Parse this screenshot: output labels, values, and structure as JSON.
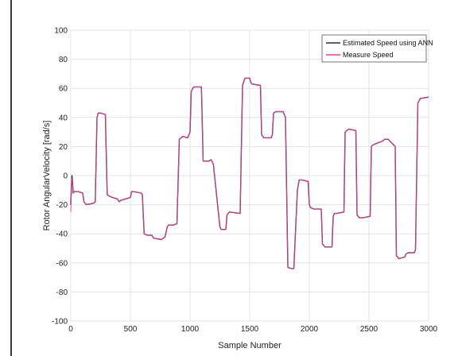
{
  "chart_data": {
    "type": "line",
    "title": "",
    "xlabel": "Sample Number",
    "ylabel": "Rotor AngularVelocity [rad/s]",
    "xlim": [
      0,
      3000
    ],
    "ylim": [
      -100,
      100
    ],
    "xticks": [
      0,
      500,
      1000,
      1500,
      2000,
      2500,
      3000
    ],
    "yticks": [
      -100,
      -80,
      -60,
      -40,
      -20,
      0,
      20,
      40,
      60,
      80,
      100
    ],
    "grid": true,
    "legend_position": "top-right",
    "series": [
      {
        "name": "Estimated Speed using ANN",
        "color": "#2b2b2b",
        "x": [
          0,
          5,
          10,
          15,
          20,
          30,
          60,
          100,
          110,
          130,
          190,
          205,
          220,
          230,
          250,
          290,
          305,
          320,
          350,
          390,
          405,
          420,
          460,
          500,
          510,
          525,
          590,
          600,
          615,
          640,
          680,
          695,
          760,
          790,
          810,
          820,
          860,
          890,
          910,
          940,
          980,
          1000,
          1010,
          1030,
          1095,
          1110,
          1160,
          1175,
          1195,
          1250,
          1260,
          1300,
          1310,
          1330,
          1420,
          1440,
          1460,
          1500,
          1510,
          1520,
          1590,
          1600,
          1620,
          1680,
          1690,
          1700,
          1720,
          1780,
          1800,
          1820,
          1850,
          1870,
          1900,
          1915,
          1940,
          1990,
          2000,
          2010,
          2040,
          2100,
          2110,
          2130,
          2190,
          2200,
          2210,
          2230,
          2290,
          2300,
          2330,
          2390,
          2400,
          2420,
          2450,
          2510,
          2520,
          2530,
          2560,
          2620,
          2630,
          2660,
          2720,
          2730,
          2750,
          2800,
          2810,
          2830,
          2880,
          2890,
          2910,
          2930,
          3000
        ],
        "y": [
          -20,
          -8,
          0,
          -5,
          -12,
          -11,
          -11,
          -12,
          -18,
          -20,
          -19,
          -18,
          40,
          43,
          43,
          42,
          -13,
          -14,
          -15,
          -16,
          -18,
          -17,
          -16,
          -15,
          -11,
          -11,
          -12,
          -13,
          -40,
          -41,
          -41,
          -43,
          -44,
          -42,
          -35,
          -34,
          -34,
          -33,
          25,
          27,
          26,
          30,
          58,
          61,
          61,
          10,
          10,
          11,
          8,
          -35,
          -37,
          -37,
          -27,
          -25,
          -26,
          62,
          67,
          67,
          64,
          63,
          62,
          28,
          26,
          26,
          28,
          43,
          44,
          44,
          40,
          -63,
          -64,
          -64,
          -10,
          -3,
          -3,
          -4,
          -20,
          -22,
          -23,
          -23,
          -47,
          -49,
          -49,
          -28,
          -26,
          -26,
          -25,
          30,
          32,
          31,
          -27,
          -29,
          -29,
          -28,
          20,
          21,
          22,
          24,
          25,
          25,
          20,
          -55,
          -57,
          -56,
          -54,
          -53,
          -53,
          -51,
          50,
          53,
          54
        ]
      },
      {
        "name": "Measure Speed",
        "color": "#e0409b",
        "x": [
          0,
          5,
          10,
          15,
          20,
          30,
          60,
          100,
          110,
          130,
          190,
          205,
          220,
          230,
          250,
          290,
          305,
          320,
          350,
          390,
          405,
          420,
          460,
          500,
          510,
          525,
          590,
          600,
          615,
          640,
          680,
          695,
          760,
          790,
          810,
          820,
          860,
          890,
          910,
          940,
          980,
          1000,
          1010,
          1030,
          1095,
          1110,
          1160,
          1175,
          1195,
          1250,
          1260,
          1300,
          1310,
          1330,
          1420,
          1440,
          1460,
          1500,
          1510,
          1520,
          1590,
          1600,
          1620,
          1680,
          1690,
          1700,
          1720,
          1780,
          1800,
          1820,
          1850,
          1870,
          1900,
          1915,
          1940,
          1990,
          2000,
          2010,
          2040,
          2100,
          2110,
          2130,
          2190,
          2200,
          2210,
          2230,
          2290,
          2300,
          2330,
          2390,
          2400,
          2420,
          2450,
          2510,
          2520,
          2530,
          2560,
          2620,
          2630,
          2660,
          2720,
          2730,
          2750,
          2800,
          2810,
          2830,
          2880,
          2890,
          2910,
          2930,
          3000
        ],
        "y": [
          -25,
          -10,
          -2,
          -6,
          -12,
          -11,
          -11,
          -12,
          -18,
          -20,
          -19,
          -18,
          40,
          43,
          43,
          42,
          -13,
          -14,
          -15,
          -16,
          -18,
          -17,
          -16,
          -15,
          -11,
          -11,
          -12,
          -13,
          -40,
          -41,
          -41,
          -43,
          -44,
          -42,
          -35,
          -34,
          -34,
          -33,
          25,
          27,
          26,
          30,
          58,
          61,
          61,
          10,
          10,
          11,
          8,
          -35,
          -37,
          -37,
          -27,
          -25,
          -26,
          62,
          67,
          67,
          64,
          63,
          62,
          28,
          26,
          26,
          28,
          43,
          44,
          44,
          40,
          -63,
          -64,
          -64,
          -10,
          -3,
          -3,
          -4,
          -20,
          -22,
          -23,
          -23,
          -47,
          -49,
          -49,
          -28,
          -26,
          -26,
          -25,
          30,
          32,
          31,
          -27,
          -29,
          -29,
          -28,
          20,
          21,
          22,
          24,
          25,
          25,
          20,
          -55,
          -57,
          -56,
          -54,
          -53,
          -53,
          -51,
          50,
          53,
          54
        ]
      }
    ]
  }
}
